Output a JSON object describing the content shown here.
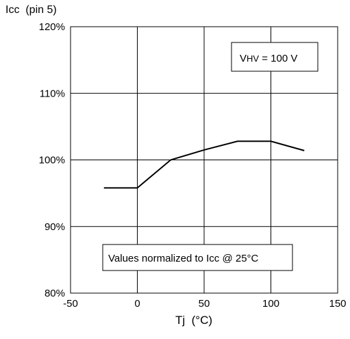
{
  "chart_data": {
    "type": "line",
    "ylabel": "Icc  (pin 5)",
    "xlabel": "Tj  (°C)",
    "xlim": [
      -50,
      150
    ],
    "ylim": [
      80,
      120
    ],
    "x_ticks": [
      "-50",
      "0",
      "50",
      "100",
      "150"
    ],
    "y_ticks": [
      "80%",
      "90%",
      "100%",
      "110%",
      "120%"
    ],
    "grid": true,
    "series": [
      {
        "x": [
          -25,
          0,
          25,
          50,
          75,
          100,
          125
        ],
        "y": [
          95.8,
          95.8,
          100,
          101.5,
          102.8,
          102.8,
          101.4
        ]
      }
    ],
    "annotations": {
      "voltage_prefix": "V",
      "voltage_sub": "HV",
      "voltage_value": " = 100 V",
      "normalized": "Values normalized to Icc @ 25°C"
    }
  }
}
